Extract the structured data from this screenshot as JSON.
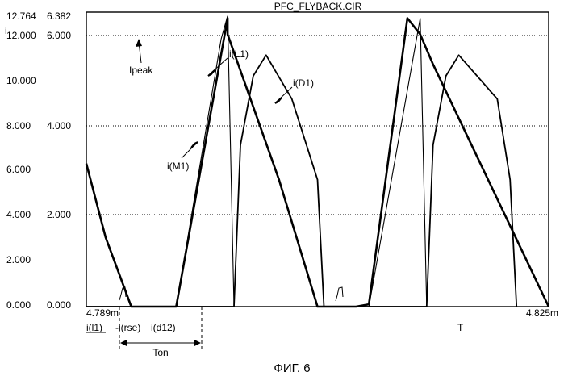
{
  "figure": {
    "title": "PFC_FLYBACK.CIR",
    "caption": "ФИГ. 6",
    "y_axis_symbol": "i",
    "time_axis_symbol": "T",
    "legend_terms": [
      "i(l1)",
      "-i(rse)",
      "i(d12)"
    ]
  },
  "chart_data": {
    "type": "line",
    "title": "PFC_FLYBACK.CIR",
    "xlabel": "T",
    "ylabel": "i",
    "x_unit": "s",
    "xlim": [
      0.004789,
      0.004825
    ],
    "x_tick_labels": [
      "4.789m",
      "4.825m"
    ],
    "ylim_left": [
      0.0,
      12.764
    ],
    "left_tick_labels": [
      "12.764",
      "12.000",
      "10.000",
      "8.000",
      "6.000",
      "4.000",
      "2.000",
      "0.000"
    ],
    "ylim_right": [
      0.0,
      6.382
    ],
    "right_tick_labels": [
      "6.382",
      "6.000",
      "4.000",
      "2.000",
      "0.000"
    ],
    "grid": "horizontal dotted at 2.000, 4.000, 6.000 (inner scale)",
    "series": [
      {
        "name": "i(L1)",
        "axis": "left",
        "x": [
          0.004789,
          0.0047905,
          0.0047925,
          0.0047945,
          0.004796,
          0.0048,
          0.0048,
          0.004804,
          0.004807,
          0.0048075,
          0.00481,
          0.004811,
          0.004814,
          0.004815,
          0.004816,
          0.004825
        ],
        "values": [
          6.2,
          3.0,
          0.0,
          0.0,
          0.0,
          12.5,
          11.8,
          5.5,
          0.0,
          0.0,
          0.0,
          0.1,
          12.5,
          11.8,
          10.5,
          0.0
        ]
      },
      {
        "name": "i(M1)",
        "axis": "left",
        "x": [
          0.004789,
          0.0047945,
          0.004796,
          0.0047995,
          0.0048,
          0.0048005,
          0.004807,
          0.004811,
          0.004815,
          0.0048155,
          0.004825
        ],
        "values": [
          0.0,
          0.0,
          0.0,
          11.6,
          12.6,
          0.0,
          0.0,
          0.0,
          12.5,
          0.0,
          0.0
        ]
      },
      {
        "name": "i(D1)",
        "axis": "left",
        "x": [
          0.004789,
          0.0047995,
          0.0048005,
          0.004801,
          0.004802,
          0.004803,
          0.004805,
          0.004807,
          0.0048075,
          0.004815,
          0.0048155,
          0.004816,
          0.004817,
          0.004818,
          0.004821,
          0.004822,
          0.0048225
        ],
        "values": [
          0.0,
          0.0,
          0.0,
          7.0,
          10.0,
          10.9,
          9.0,
          5.5,
          0.0,
          0.0,
          0.0,
          7.0,
          10.0,
          10.9,
          9.0,
          5.5,
          0.0
        ]
      }
    ],
    "annotations": [
      "Ipeak",
      "i(L1)",
      "i(D1)",
      "i(M1)",
      "Ton"
    ]
  }
}
